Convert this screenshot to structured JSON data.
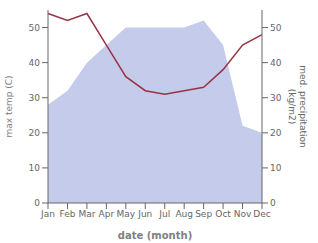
{
  "chart_data": {
    "type": "line",
    "categories": [
      "Jan",
      "Feb",
      "Mar",
      "Apr",
      "May",
      "Jun",
      "Jul",
      "Aug",
      "Sep",
      "Oct",
      "Nov",
      "Dec"
    ],
    "series": [
      {
        "type": "area",
        "color": "#c5cceb",
        "values": [
          28,
          32,
          40,
          45,
          50,
          50,
          50,
          50,
          52,
          45,
          22,
          20
        ]
      },
      {
        "type": "line",
        "color": "#993344",
        "axis": "y2",
        "values": [
          54,
          52,
          54,
          45,
          36,
          32,
          31,
          32,
          33,
          38,
          45,
          48
        ]
      }
    ],
    "xlabel": "date (month)",
    "ylabel": "max temp (C)",
    "y2label": "med. precipitation\n(kg/m2)",
    "ylim": [
      0,
      55
    ],
    "yticks": [
      0,
      10,
      20,
      30,
      40,
      50
    ],
    "y2lim": [
      0,
      55
    ],
    "y2ticks": [
      0,
      10,
      20,
      30,
      40,
      50
    ]
  }
}
